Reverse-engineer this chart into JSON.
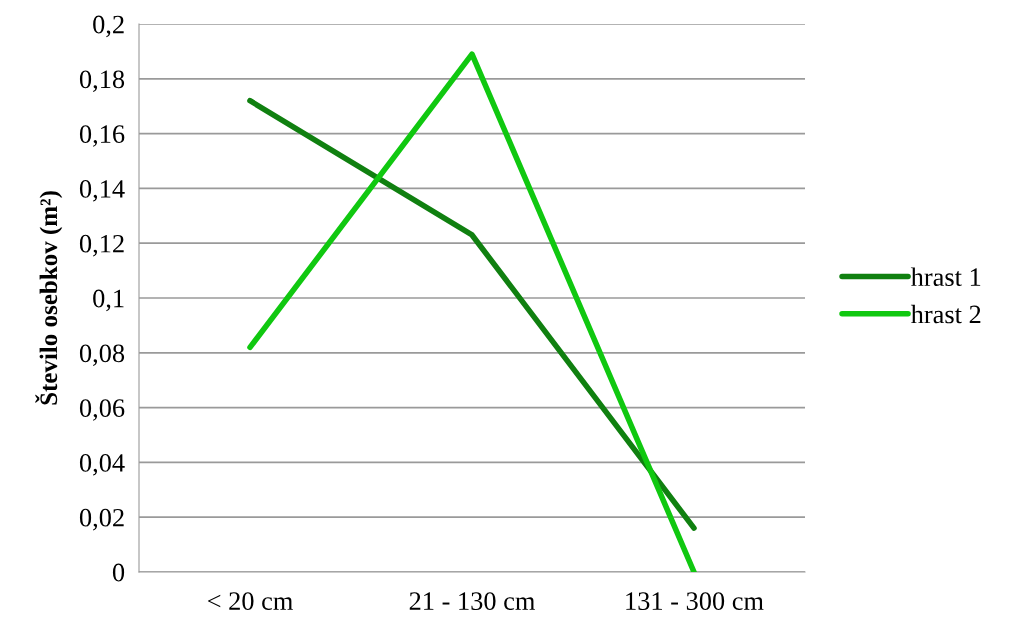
{
  "chart_data": {
    "type": "line",
    "ylabel": "Število osebkov (m²)",
    "categories": [
      "< 20 cm",
      "21 - 130 cm",
      "131 - 300 cm"
    ],
    "series": [
      {
        "name": "hrast 1",
        "color": "#108010",
        "values": [
          0.172,
          0.123,
          0.016
        ]
      },
      {
        "name": "hrast 2",
        "color": "#10c810",
        "values": [
          0.082,
          0.189,
          0
        ]
      }
    ],
    "ylim": [
      0,
      0.2
    ],
    "yticks": [
      {
        "value": 0,
        "label": "0"
      },
      {
        "value": 0.02,
        "label": "0,02"
      },
      {
        "value": 0.04,
        "label": "0,04"
      },
      {
        "value": 0.06,
        "label": "0,06"
      },
      {
        "value": 0.08,
        "label": "0,08"
      },
      {
        "value": 0.1,
        "label": "0,1"
      },
      {
        "value": 0.12,
        "label": "0,12"
      },
      {
        "value": 0.14,
        "label": "0,14"
      },
      {
        "value": 0.16,
        "label": "0,16"
      },
      {
        "value": 0.18,
        "label": "0,18"
      },
      {
        "value": 0.2,
        "label": "0,2"
      }
    ],
    "grid": "y",
    "legend": "right",
    "marker": "none",
    "line_style": "solid"
  }
}
